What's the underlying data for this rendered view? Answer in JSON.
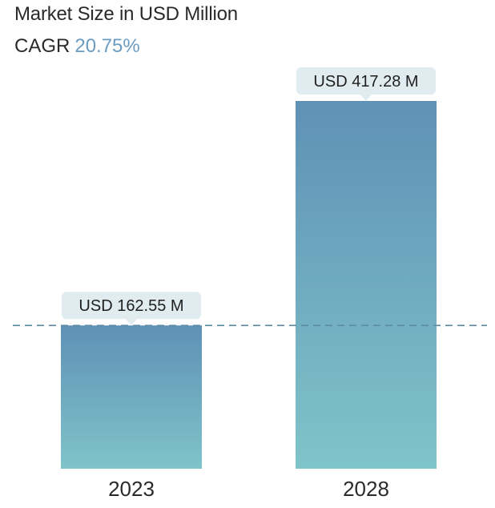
{
  "header": {
    "title": "Market Size in USD Million",
    "cagr_label": "CAGR",
    "cagr_value": "20.75%"
  },
  "colors": {
    "bar_top": "#5f91b6",
    "bar_bottom": "#7fc4c9",
    "callout_bg": "#e1ecf0",
    "reference_line": "#5b8ba6",
    "cagr_value": "#6b9cc2"
  },
  "chart_data": {
    "type": "bar",
    "categories": [
      "2023",
      "2028"
    ],
    "values": [
      162.55,
      417.28
    ],
    "data_labels": [
      "USD 162.55 M",
      "USD 417.28 M"
    ],
    "title": "Market Size in USD Million",
    "xlabel": "",
    "ylabel": "",
    "ylim": [
      0,
      417.28
    ],
    "grid": false,
    "reference_line": {
      "value": 162.55,
      "style": "dashed"
    }
  }
}
